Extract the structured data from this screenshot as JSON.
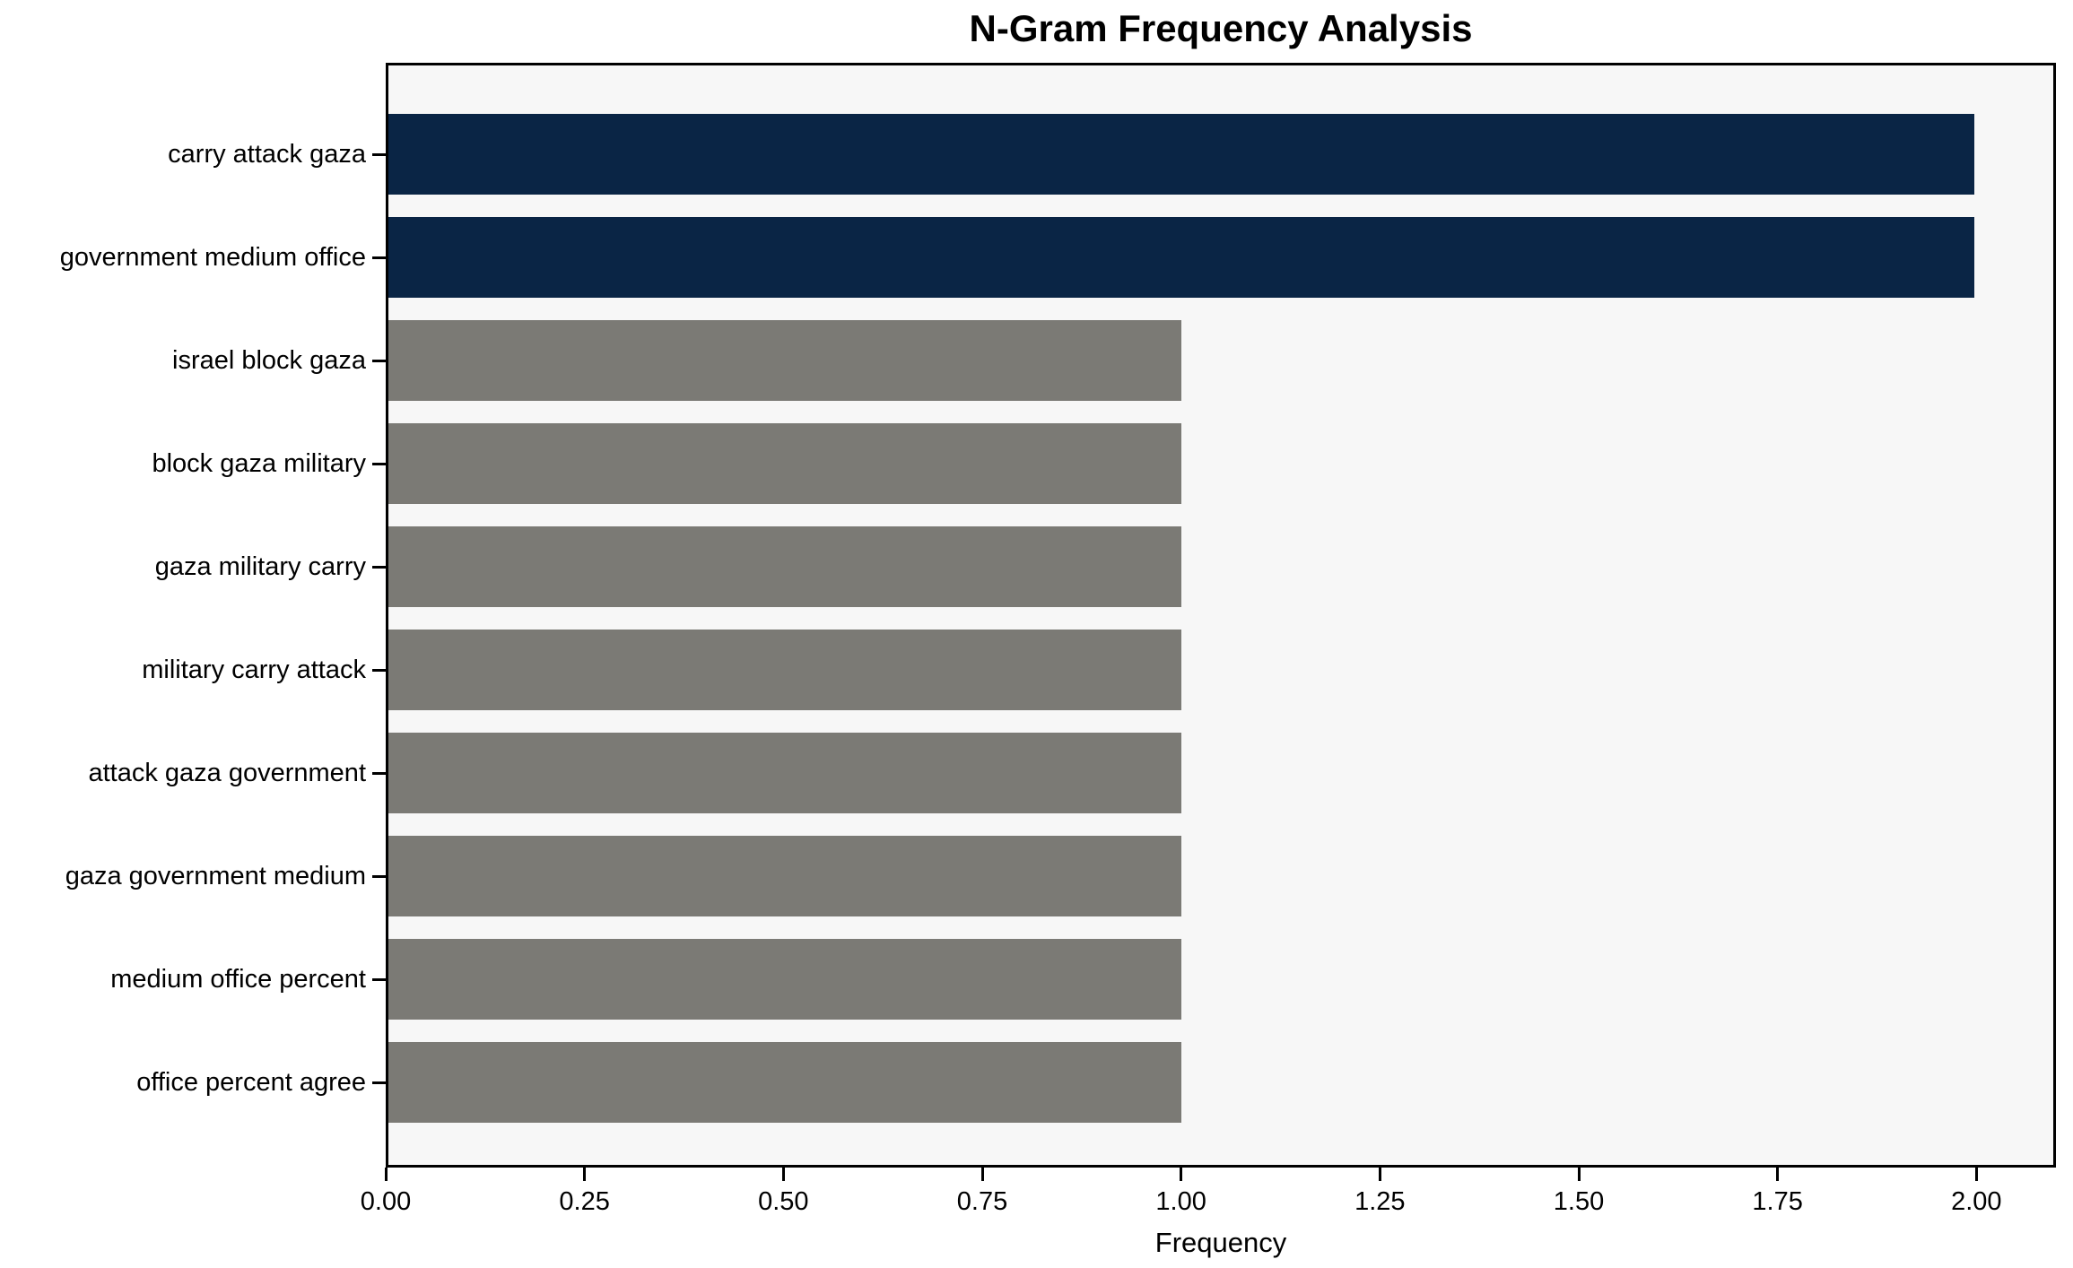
{
  "chart_data": {
    "type": "bar",
    "orientation": "horizontal",
    "title": "N-Gram Frequency Analysis",
    "xlabel": "Frequency",
    "ylabel": "",
    "categories": [
      "carry attack gaza",
      "government medium office",
      "israel block gaza",
      "block gaza military",
      "gaza military carry",
      "military carry attack",
      "attack gaza government",
      "gaza government medium",
      "medium office percent",
      "office percent agree"
    ],
    "values": [
      2,
      2,
      1,
      1,
      1,
      1,
      1,
      1,
      1,
      1
    ],
    "bar_colors": [
      "#0a2545",
      "#0a2545",
      "#7b7a75",
      "#7b7a75",
      "#7b7a75",
      "#7b7a75",
      "#7b7a75",
      "#7b7a75",
      "#7b7a75",
      "#7b7a75"
    ],
    "xlim": [
      0,
      2.1
    ],
    "xtick_values": [
      0,
      0.25,
      0.5,
      0.75,
      1.0,
      1.25,
      1.5,
      1.75,
      2.0
    ],
    "xtick_labels": [
      "0.00",
      "0.25",
      "0.50",
      "0.75",
      "1.00",
      "1.25",
      "1.50",
      "1.75",
      "2.00"
    ],
    "grid": false,
    "legend": false,
    "colors": {
      "highlight_bar": "#0a2545",
      "default_bar": "#7b7a75",
      "plot_background": "#f7f7f7",
      "figure_background": "#ffffff",
      "axis": "#000000"
    }
  }
}
